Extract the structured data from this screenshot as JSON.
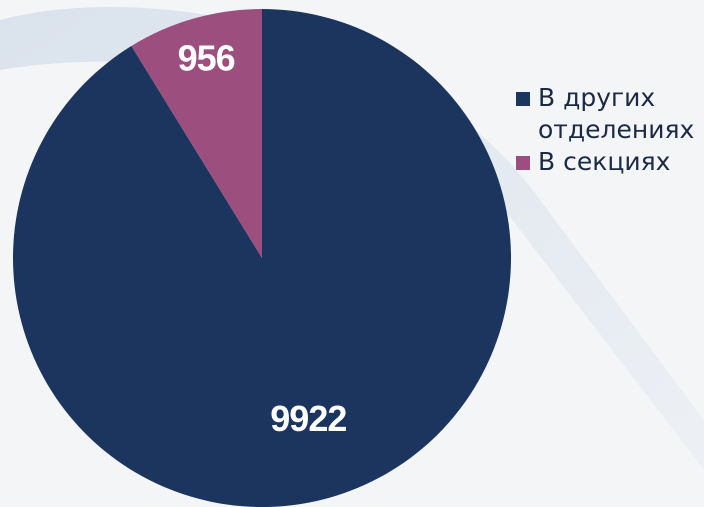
{
  "chart_data": {
    "type": "pie",
    "categories": [
      "В других отделениях",
      "В секциях"
    ],
    "values": [
      9922,
      956
    ],
    "colors": [
      "#1b355e",
      "#9c4f7e"
    ]
  }
}
